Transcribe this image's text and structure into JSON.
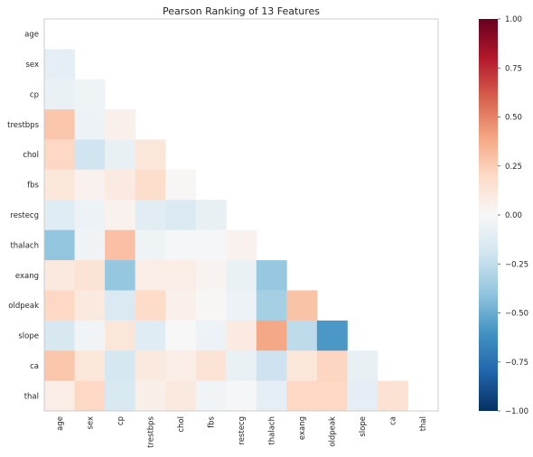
{
  "chart_data": {
    "type": "heatmap",
    "title": "Pearson Ranking of 13 Features",
    "features": [
      "age",
      "sex",
      "cp",
      "trestbps",
      "chol",
      "fbs",
      "restecg",
      "thalach",
      "exang",
      "oldpeak",
      "slope",
      "ca",
      "thal"
    ],
    "lower_triangle_values": [
      [],
      [
        -0.1
      ],
      [
        -0.07,
        -0.05
      ],
      [
        0.28,
        -0.06,
        0.05
      ],
      [
        0.21,
        -0.2,
        -0.08,
        0.12
      ],
      [
        0.12,
        0.04,
        0.09,
        0.18,
        0.01
      ],
      [
        -0.12,
        -0.06,
        0.04,
        -0.11,
        -0.15,
        -0.08
      ],
      [
        -0.4,
        -0.04,
        0.3,
        -0.05,
        -0.01,
        -0.01,
        0.04
      ],
      [
        0.1,
        0.14,
        -0.39,
        0.07,
        0.07,
        0.03,
        -0.07,
        -0.38
      ],
      [
        0.21,
        0.1,
        -0.15,
        0.19,
        0.05,
        0.01,
        -0.06,
        -0.34,
        0.29
      ],
      [
        -0.17,
        -0.03,
        0.12,
        -0.12,
        0.0,
        -0.06,
        0.09,
        0.39,
        -0.26,
        -0.58
      ],
      [
        0.28,
        0.12,
        -0.18,
        0.1,
        0.07,
        0.14,
        -0.07,
        -0.21,
        0.12,
        0.22,
        -0.08
      ],
      [
        0.07,
        0.21,
        -0.16,
        0.06,
        0.1,
        -0.03,
        -0.01,
        -0.1,
        0.21,
        0.21,
        -0.1,
        0.15
      ]
    ],
    "color_scale": {
      "min": -1,
      "max": 1,
      "ticks": [
        "1.00",
        "0.75",
        "0.50",
        "0.25",
        "0.00",
        "−0.25",
        "−0.50",
        "−0.75",
        "−1.00"
      ],
      "tick_values": [
        1.0,
        0.75,
        0.5,
        0.25,
        0.0,
        -0.25,
        -0.5,
        -0.75,
        -1.0
      ],
      "palette": "RdBu",
      "stops": [
        "#053061",
        "#2166ac",
        "#4393c3",
        "#92c5de",
        "#d1e5f0",
        "#f7f7f7",
        "#fddbc7",
        "#f4a582",
        "#d6604d",
        "#b2182b",
        "#67001f"
      ]
    },
    "grid": false
  }
}
